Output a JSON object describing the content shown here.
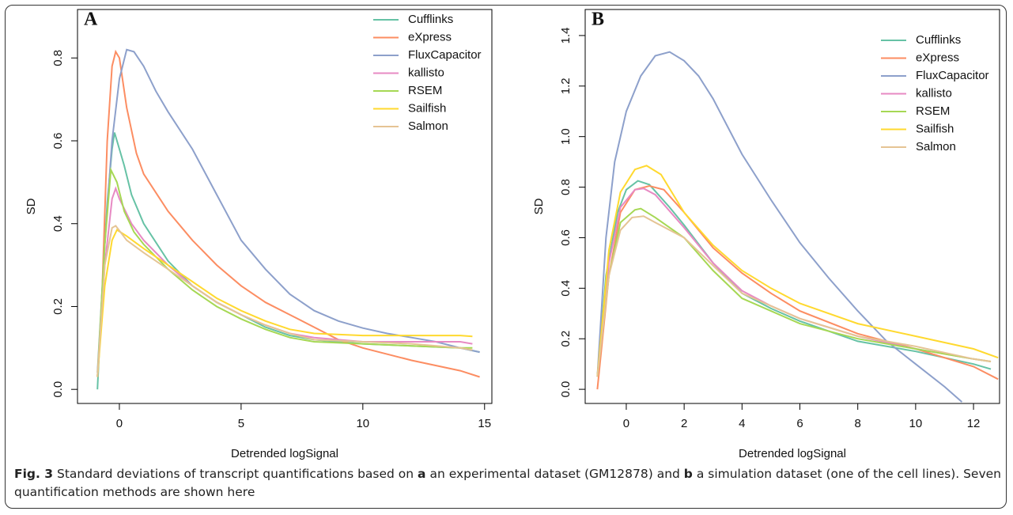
{
  "chart_data": [
    {
      "type": "line",
      "title": "A",
      "xlabel": "Detrended logSignal",
      "ylabel": "SD",
      "xlim": [
        -1.72,
        15.3
      ],
      "ylim": [
        -0.034,
        0.917
      ],
      "xticks": [
        0,
        5,
        10,
        15
      ],
      "yticks": [
        {
          "value": 0,
          "label": "0.0"
        },
        0.2,
        0.4,
        0.6,
        0.8
      ],
      "legend": "top-right",
      "series": [
        {
          "name": "Cufflinks",
          "color": "#66c2a5",
          "x": [
            -0.9,
            -0.7,
            -0.5,
            -0.3,
            -0.2,
            0,
            0.2,
            0.5,
            1,
            2,
            3,
            4,
            5,
            6,
            7,
            8,
            10,
            12,
            14,
            14.8
          ],
          "values": [
            0,
            0.25,
            0.45,
            0.58,
            0.62,
            0.58,
            0.54,
            0.47,
            0.4,
            0.31,
            0.25,
            0.21,
            0.18,
            0.15,
            0.13,
            0.12,
            0.11,
            0.105,
            0.1,
            0.09
          ]
        },
        {
          "name": "eXpress",
          "color": "#fc8d62",
          "x": [
            -0.7,
            -0.5,
            -0.3,
            -0.15,
            0,
            0.3,
            0.7,
            1,
            2,
            3,
            4,
            5,
            6,
            7,
            8,
            9,
            10,
            12,
            14,
            14.8
          ],
          "values": [
            0.25,
            0.6,
            0.78,
            0.815,
            0.8,
            0.68,
            0.57,
            0.52,
            0.43,
            0.36,
            0.3,
            0.25,
            0.21,
            0.18,
            0.15,
            0.12,
            0.1,
            0.07,
            0.045,
            0.03
          ]
        },
        {
          "name": "FluxCapacitor",
          "color": "#8da0cb",
          "x": [
            -0.9,
            -0.6,
            -0.3,
            0,
            0.3,
            0.6,
            1,
            1.5,
            2,
            3,
            4,
            5,
            6,
            7,
            8,
            9,
            10,
            11,
            12,
            13,
            14,
            14.8
          ],
          "values": [
            0.04,
            0.35,
            0.6,
            0.75,
            0.82,
            0.815,
            0.78,
            0.72,
            0.67,
            0.58,
            0.47,
            0.36,
            0.29,
            0.23,
            0.19,
            0.165,
            0.148,
            0.135,
            0.125,
            0.115,
            0.1,
            0.09
          ]
        },
        {
          "name": "kallisto",
          "color": "#e78ac3",
          "x": [
            -0.9,
            -0.6,
            -0.3,
            -0.15,
            0,
            0.5,
            1,
            2,
            3,
            4,
            5,
            6,
            7,
            8,
            10,
            12,
            14,
            14.5
          ],
          "values": [
            0.03,
            0.3,
            0.46,
            0.485,
            0.46,
            0.4,
            0.36,
            0.3,
            0.25,
            0.21,
            0.18,
            0.155,
            0.135,
            0.125,
            0.115,
            0.115,
            0.115,
            0.11
          ]
        },
        {
          "name": "RSEM",
          "color": "#a6d854",
          "x": [
            -0.9,
            -0.6,
            -0.35,
            -0.1,
            0.2,
            0.6,
            1,
            2,
            3,
            4,
            5,
            6,
            7,
            8,
            10,
            12,
            14,
            14.5
          ],
          "values": [
            0.03,
            0.35,
            0.53,
            0.5,
            0.43,
            0.38,
            0.35,
            0.29,
            0.24,
            0.2,
            0.17,
            0.145,
            0.125,
            0.115,
            0.11,
            0.105,
            0.1,
            0.1
          ]
        },
        {
          "name": "Sailfish",
          "color": "#ffd92f",
          "x": [
            -0.9,
            -0.6,
            -0.3,
            -0.1,
            0.3,
            1,
            2,
            3,
            4,
            5,
            6,
            7,
            8,
            10,
            12,
            14,
            14.5
          ],
          "values": [
            0.03,
            0.25,
            0.36,
            0.385,
            0.37,
            0.34,
            0.3,
            0.26,
            0.22,
            0.19,
            0.165,
            0.145,
            0.135,
            0.13,
            0.13,
            0.13,
            0.128
          ]
        },
        {
          "name": "Salmon",
          "color": "#e5c494",
          "x": [
            -0.9,
            -0.6,
            -0.3,
            -0.15,
            0.3,
            1,
            2,
            3,
            4,
            5,
            6,
            7,
            8,
            10,
            12,
            14,
            14.5
          ],
          "values": [
            0.03,
            0.3,
            0.39,
            0.395,
            0.36,
            0.33,
            0.29,
            0.25,
            0.21,
            0.18,
            0.155,
            0.135,
            0.12,
            0.115,
            0.11,
            0.1,
            0.095
          ]
        }
      ]
    },
    {
      "type": "line",
      "title": "B",
      "xlabel": "Detrended logSignal",
      "ylabel": "SD",
      "xlim": [
        -1.42,
        12.9
      ],
      "ylim": [
        -0.056,
        1.503
      ],
      "xticks": [
        0,
        2,
        4,
        6,
        8,
        10,
        12
      ],
      "yticks": [
        {
          "value": 0,
          "label": "0.0"
        },
        0.2,
        0.4,
        0.6,
        0.8,
        {
          "value": 1,
          "label": "1.0"
        },
        1.2,
        1.4
      ],
      "legend": "top-right",
      "series": [
        {
          "name": "Cufflinks",
          "color": "#66c2a5",
          "x": [
            -1,
            -0.7,
            -0.3,
            0,
            0.4,
            0.8,
            1.5,
            2,
            3,
            4,
            5,
            6,
            8,
            10,
            12,
            12.6
          ],
          "values": [
            0.05,
            0.45,
            0.7,
            0.79,
            0.825,
            0.81,
            0.72,
            0.65,
            0.5,
            0.38,
            0.32,
            0.27,
            0.19,
            0.15,
            0.1,
            0.08
          ]
        },
        {
          "name": "eXpress",
          "color": "#fc8d62",
          "x": [
            -1,
            -0.6,
            -0.2,
            0.3,
            0.8,
            1.3,
            2,
            3,
            4,
            5,
            6,
            8,
            10,
            12,
            12.85
          ],
          "values": [
            0,
            0.45,
            0.7,
            0.79,
            0.805,
            0.79,
            0.7,
            0.56,
            0.46,
            0.38,
            0.31,
            0.22,
            0.16,
            0.09,
            0.04
          ]
        },
        {
          "name": "FluxCapacitor",
          "color": "#8da0cb",
          "x": [
            -1,
            -0.7,
            -0.4,
            0,
            0.5,
            1,
            1.5,
            2,
            2.5,
            3,
            4,
            5,
            6,
            7,
            8,
            9,
            10,
            11,
            11.6
          ],
          "values": [
            0.05,
            0.6,
            0.9,
            1.1,
            1.24,
            1.32,
            1.335,
            1.3,
            1.24,
            1.15,
            0.93,
            0.75,
            0.58,
            0.44,
            0.31,
            0.19,
            0.1,
            0.01,
            -0.05
          ]
        },
        {
          "name": "kallisto",
          "color": "#e78ac3",
          "x": [
            -1,
            -0.6,
            -0.2,
            0.3,
            0.6,
            1,
            2,
            3,
            4,
            5,
            6,
            8,
            10,
            12,
            12.6
          ],
          "values": [
            0.05,
            0.5,
            0.72,
            0.79,
            0.795,
            0.77,
            0.64,
            0.5,
            0.39,
            0.33,
            0.28,
            0.21,
            0.16,
            0.12,
            0.11
          ]
        },
        {
          "name": "RSEM",
          "color": "#a6d854",
          "x": [
            -1,
            -0.6,
            -0.2,
            0.3,
            0.5,
            1,
            2,
            3,
            4,
            5,
            6,
            8,
            10,
            12,
            12.6
          ],
          "values": [
            0.05,
            0.45,
            0.66,
            0.71,
            0.715,
            0.68,
            0.6,
            0.47,
            0.36,
            0.31,
            0.26,
            0.2,
            0.16,
            0.12,
            0.11
          ]
        },
        {
          "name": "Sailfish",
          "color": "#ffd92f",
          "x": [
            -1,
            -0.6,
            -0.2,
            0.3,
            0.7,
            1.2,
            2,
            3,
            4,
            5,
            6,
            8,
            10,
            12,
            12.85
          ],
          "values": [
            0.05,
            0.55,
            0.78,
            0.87,
            0.885,
            0.85,
            0.7,
            0.57,
            0.47,
            0.4,
            0.34,
            0.26,
            0.21,
            0.16,
            0.125
          ]
        },
        {
          "name": "Salmon",
          "color": "#e5c494",
          "x": [
            -1,
            -0.6,
            -0.2,
            0.2,
            0.6,
            1,
            2,
            3,
            4,
            5,
            6,
            8,
            10,
            12,
            12.6
          ],
          "values": [
            0.05,
            0.45,
            0.63,
            0.68,
            0.685,
            0.66,
            0.6,
            0.49,
            0.38,
            0.33,
            0.28,
            0.21,
            0.17,
            0.12,
            0.11
          ]
        }
      ]
    }
  ],
  "caption": [
    "Fig. 3",
    " Standard deviations of transcript quantifications based on ",
    "a",
    " an experimental dataset (GM12878) and ",
    "b",
    " a simulation dataset (one of the cell lines). Seven quantification methods are shown here"
  ]
}
